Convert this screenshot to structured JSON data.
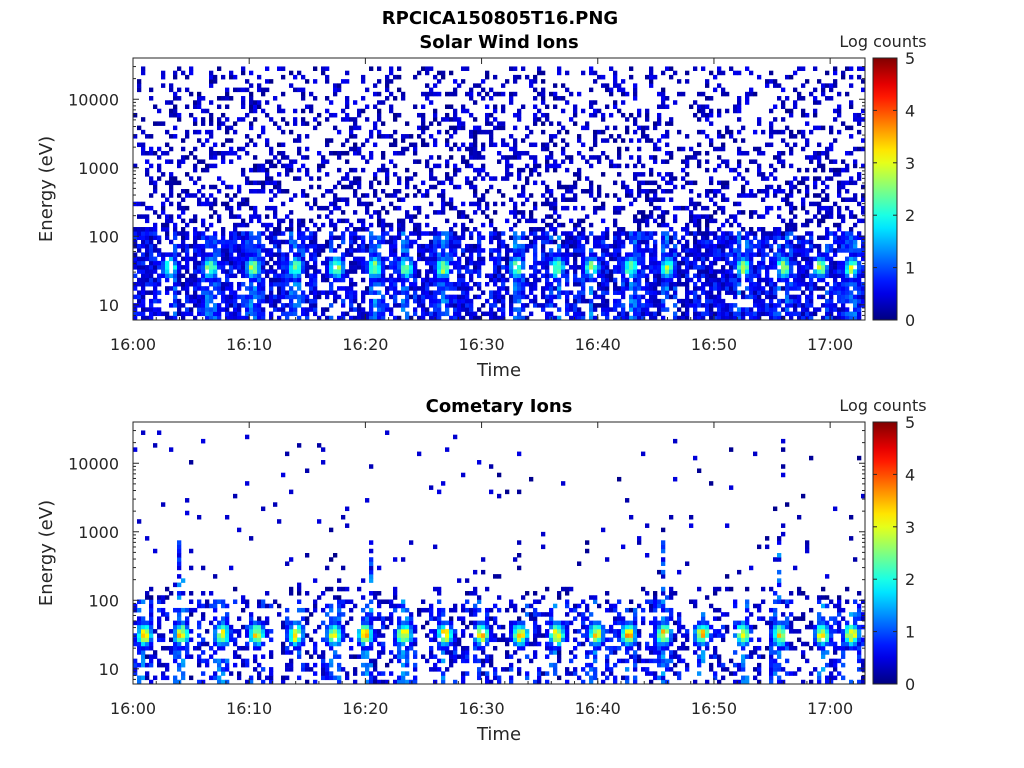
{
  "figure": {
    "title": "RPCICA150805T16.PNG"
  },
  "chart_data": [
    {
      "type": "heatmap",
      "title": "Solar Wind Ions",
      "xlabel": "Time",
      "ylabel": "Energy (eV)",
      "x_ticks": [
        "16:00",
        "16:10",
        "16:20",
        "16:30",
        "16:40",
        "16:50",
        "17:00"
      ],
      "x_range": [
        "16:00",
        "17:03"
      ],
      "y_scale": "log",
      "y_ticks": [
        10,
        100,
        1000,
        10000
      ],
      "y_tick_labels": [
        "10",
        "100",
        "1000",
        "10000"
      ],
      "y_range": [
        6,
        40000
      ],
      "colorbar": {
        "label": "Log counts",
        "ticks": [
          "0",
          "1",
          "2",
          "3",
          "4",
          "5"
        ],
        "range": [
          0,
          5
        ],
        "colormap": "jet"
      },
      "peak_times": [
        "16:03:10",
        "16:06:40",
        "16:10:20",
        "16:14:00",
        "16:17:30",
        "16:20:50",
        "16:23:30",
        "16:26:40",
        "16:33:00",
        "16:36:30",
        "16:39:30",
        "16:42:50",
        "16:46:00",
        "16:52:30",
        "16:56:00",
        "16:59:10",
        "17:01:50"
      ],
      "peak_energy": 35,
      "peak_level": 2.9,
      "background_max_energy": 30000,
      "background_density": 0.45
    },
    {
      "type": "heatmap",
      "title": "Cometary Ions",
      "xlabel": "Time",
      "ylabel": "Energy (eV)",
      "x_ticks": [
        "16:00",
        "16:10",
        "16:20",
        "16:30",
        "16:40",
        "16:50",
        "17:00"
      ],
      "x_range": [
        "16:00",
        "17:03"
      ],
      "y_scale": "log",
      "y_ticks": [
        10,
        100,
        1000,
        10000
      ],
      "y_tick_labels": [
        "10",
        "100",
        "1000",
        "10000"
      ],
      "y_range": [
        6,
        40000
      ],
      "colorbar": {
        "label": "Log counts",
        "ticks": [
          "0",
          "1",
          "2",
          "3",
          "4",
          "5"
        ],
        "range": [
          0,
          5
        ],
        "colormap": "jet"
      },
      "peak_times": [
        "16:01:00",
        "16:04:10",
        "16:07:40",
        "16:10:40",
        "16:14:00",
        "16:17:20",
        "16:20:00",
        "16:23:20",
        "16:26:50",
        "16:30:00",
        "16:33:20",
        "16:36:30",
        "16:39:50",
        "16:42:40",
        "16:45:40",
        "16:49:00",
        "16:52:30",
        "16:55:40",
        "16:59:20",
        "17:01:50"
      ],
      "peak_energy": 32,
      "peak_level": 3.6,
      "spike_times": [
        "16:04:00",
        "16:20:30",
        "16:45:40",
        "16:55:30"
      ],
      "background_max_energy": 30000,
      "background_density": 0.04
    }
  ]
}
